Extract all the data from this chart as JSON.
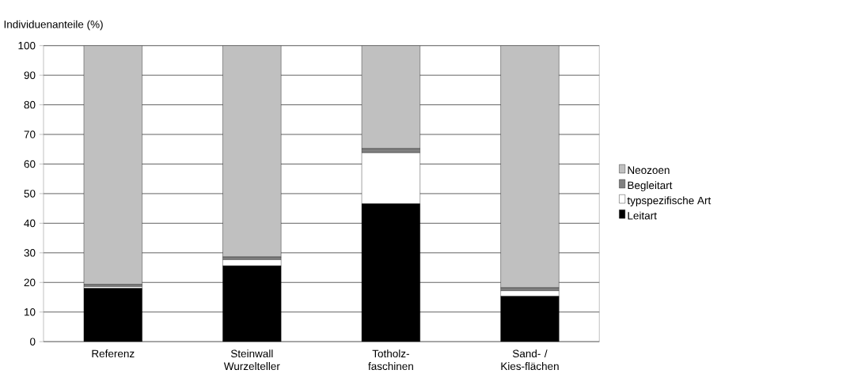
{
  "chart_data": {
    "type": "bar",
    "stacked": true,
    "ylabel": "Individuenanteile (%)",
    "categories": [
      "Referenz",
      "Steinwall Wurzelteller",
      "Totholz-faschinen",
      "Sand- / Kies-flächen"
    ],
    "series": [
      {
        "name": "Leitart",
        "color": "#000000",
        "values": [
          18.0,
          25.6,
          46.6,
          15.3
        ]
      },
      {
        "name": "typspezifische Art",
        "color": "#ffffff",
        "values": [
          0.6,
          2.1,
          17.2,
          1.9
        ]
      },
      {
        "name": "Begleitart",
        "color": "#808080",
        "values": [
          0.7,
          0.9,
          1.4,
          1.0
        ]
      },
      {
        "name": "Neozoen",
        "color": "#c0c0c0",
        "values": [
          80.7,
          71.4,
          34.8,
          81.8
        ]
      }
    ],
    "ylim": [
      0,
      100
    ],
    "yticks": [
      0,
      10,
      20,
      30,
      40,
      50,
      60,
      70,
      80,
      90,
      100
    ],
    "grid": "y",
    "legend": "right"
  }
}
